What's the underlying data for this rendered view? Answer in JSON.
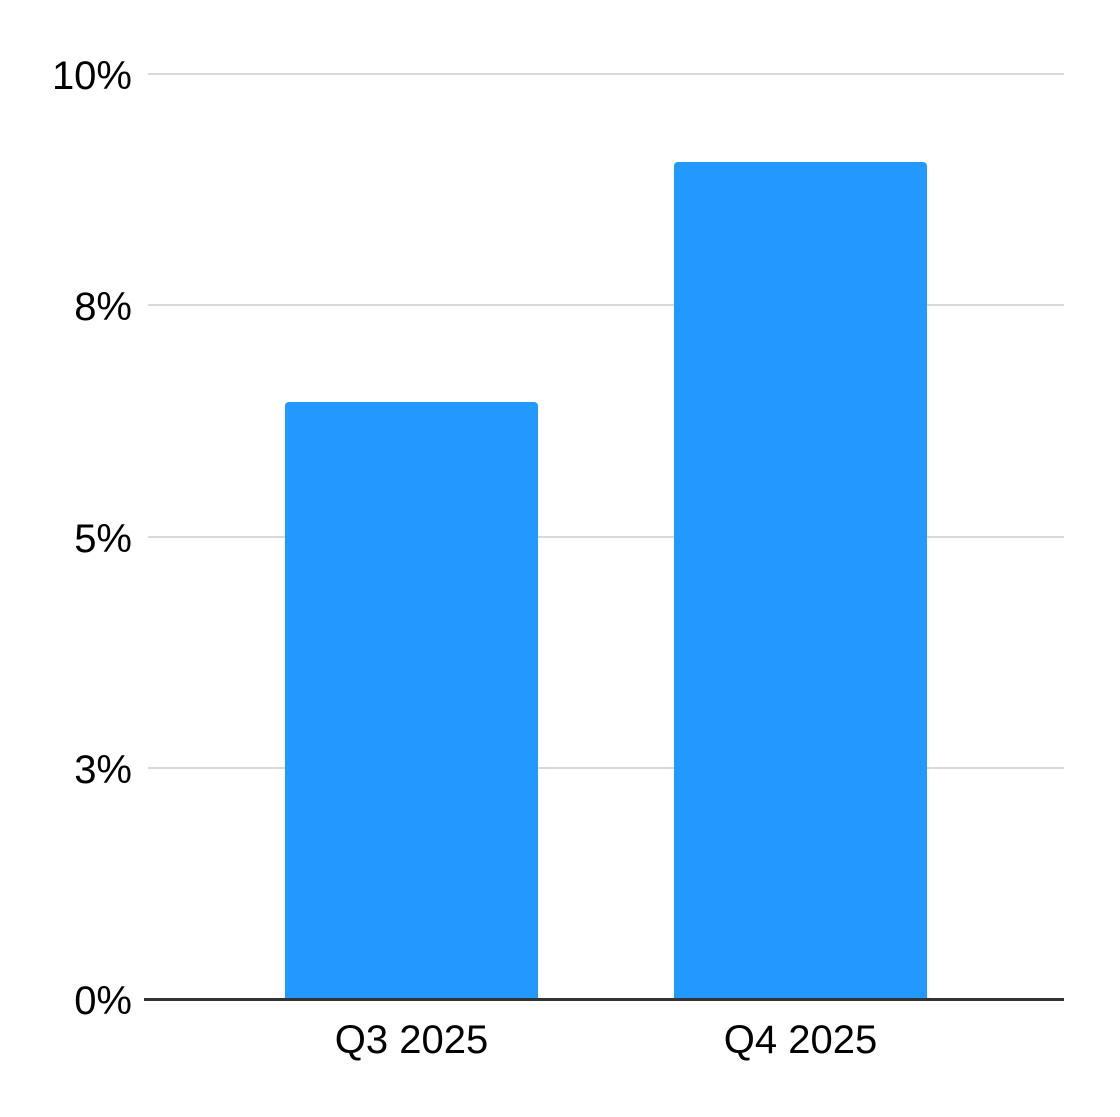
{
  "chart_data": {
    "type": "bar",
    "categories": [
      "Q3 2025",
      "Q4 2025"
    ],
    "values": [
      6.45,
      9.05
    ],
    "value_unit": "%",
    "title": "",
    "xlabel": "",
    "ylabel": "",
    "ylim": [
      0,
      10
    ],
    "y_ticks": [
      {
        "label": "0%",
        "value": 0
      },
      {
        "label": "3%",
        "value": 2.5
      },
      {
        "label": "5%",
        "value": 5
      },
      {
        "label": "8%",
        "value": 7.5
      },
      {
        "label": "10%",
        "value": 10
      }
    ],
    "grid": true,
    "legend": false,
    "series_name": ""
  },
  "colors": {
    "bar": "#2299FF",
    "gridline": "#d9d9d9",
    "axis_line": "#333333",
    "label_text": "#000000",
    "background": "#ffffff"
  }
}
